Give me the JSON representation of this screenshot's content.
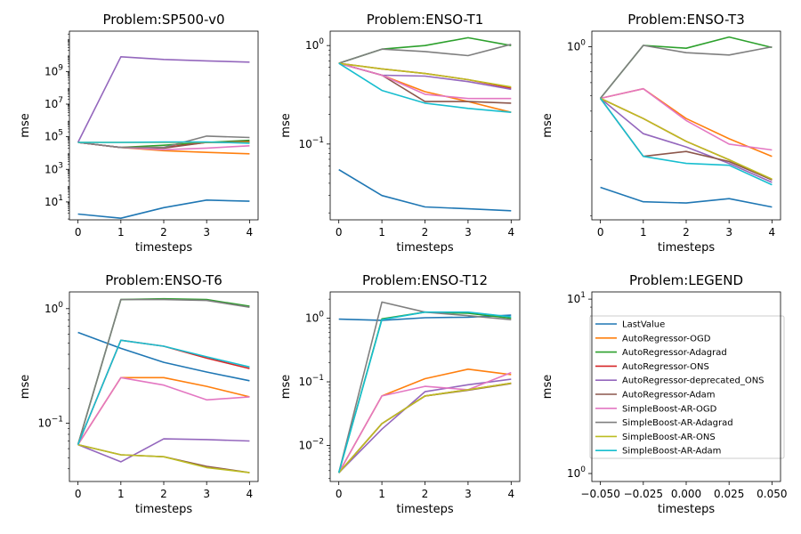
{
  "chart_data": [
    {
      "type": "line",
      "title": "Problem:SP500-v0",
      "xlabel": "timesteps",
      "ylabel": "mse",
      "yscale": "log",
      "ylim": [
        0.8,
        300000000000
      ],
      "yticks": [
        {
          "v": 10,
          "b": "10",
          "e": "1"
        },
        {
          "v": 1000,
          "b": "10",
          "e": "3"
        },
        {
          "v": 100000,
          "b": "10",
          "e": "5"
        },
        {
          "v": 10000000,
          "b": "10",
          "e": "7"
        },
        {
          "v": 1000000000,
          "b": "10",
          "e": "9"
        }
      ],
      "xlim": [
        -0.2,
        4.2
      ],
      "xticks": [
        "0",
        "1",
        "2",
        "3",
        "4"
      ],
      "x": [
        0,
        1,
        2,
        3,
        4
      ],
      "series": [
        {
          "name": "LastValue",
          "color": "#1f77b4",
          "values": [
            1.8,
            1.0,
            4.5,
            13,
            11
          ]
        },
        {
          "name": "AutoRegressor-OGD",
          "color": "#ff7f0e",
          "values": [
            45000,
            22000,
            14000,
            11000,
            9000
          ]
        },
        {
          "name": "AutoRegressor-Adagrad",
          "color": "#2ca02c",
          "values": [
            45000,
            22000,
            30000,
            45000,
            60000
          ]
        },
        {
          "name": "AutoRegressor-ONS",
          "color": "#d62728",
          "values": [
            45000,
            22000,
            22000,
            45000,
            50000
          ]
        },
        {
          "name": "AutoRegressor-deprecated_ONS",
          "color": "#9467bd",
          "values": [
            45000,
            8000000000,
            5500000000,
            4500000000,
            3800000000
          ]
        },
        {
          "name": "AutoRegressor-Adam",
          "color": "#8c564b",
          "values": [
            45000,
            22000,
            20000,
            45000,
            45000
          ]
        },
        {
          "name": "SimpleBoost-AR-OGD",
          "color": "#e377c2",
          "values": [
            45000,
            22000,
            16000,
            20000,
            28000
          ]
        },
        {
          "name": "SimpleBoost-AR-Adagrad",
          "color": "#7f7f7f",
          "values": [
            45000,
            22000,
            22000,
            110000,
            90000
          ]
        },
        {
          "name": "SimpleBoost-AR-ONS",
          "color": "#bcbd22",
          "values": [
            45000,
            45000,
            45000,
            45000,
            45000
          ]
        },
        {
          "name": "SimpleBoost-AR-Adam",
          "color": "#17becf",
          "values": [
            45000,
            45000,
            47000,
            48000,
            40000
          ]
        }
      ]
    },
    {
      "type": "line",
      "title": "Problem:ENSO-T1",
      "xlabel": "timesteps",
      "ylabel": "mse",
      "yscale": "log",
      "ylim": [
        0.017,
        1.4
      ],
      "yticks": [
        {
          "v": 0.1,
          "b": "10",
          "e": "−1"
        },
        {
          "v": 1,
          "b": "10",
          "e": "0"
        }
      ],
      "xlim": [
        -0.2,
        4.2
      ],
      "xticks": [
        "0",
        "1",
        "2",
        "3",
        "4"
      ],
      "x": [
        0,
        1,
        2,
        3,
        4
      ],
      "series": [
        {
          "name": "LastValue",
          "color": "#1f77b4",
          "values": [
            0.055,
            0.03,
            0.023,
            0.022,
            0.021
          ]
        },
        {
          "name": "AutoRegressor-OGD",
          "color": "#ff7f0e",
          "values": [
            0.66,
            0.5,
            0.34,
            0.27,
            0.21
          ]
        },
        {
          "name": "AutoRegressor-Adagrad",
          "color": "#2ca02c",
          "values": [
            0.66,
            0.92,
            1.0,
            1.2,
            1.0
          ]
        },
        {
          "name": "AutoRegressor-ONS",
          "color": "#d62728",
          "values": [
            0.66,
            0.58,
            0.52,
            0.45,
            0.37
          ]
        },
        {
          "name": "AutoRegressor-deprecated_ONS",
          "color": "#9467bd",
          "values": [
            0.66,
            0.5,
            0.49,
            0.43,
            0.36
          ]
        },
        {
          "name": "AutoRegressor-Adam",
          "color": "#8c564b",
          "values": [
            0.66,
            0.5,
            0.27,
            0.27,
            0.26
          ]
        },
        {
          "name": "SimpleBoost-AR-OGD",
          "color": "#e377c2",
          "values": [
            0.66,
            0.5,
            0.32,
            0.29,
            0.29
          ]
        },
        {
          "name": "SimpleBoost-AR-Adagrad",
          "color": "#7f7f7f",
          "values": [
            0.66,
            0.92,
            0.87,
            0.79,
            1.03
          ]
        },
        {
          "name": "SimpleBoost-AR-ONS",
          "color": "#bcbd22",
          "values": [
            0.66,
            0.58,
            0.52,
            0.45,
            0.38
          ]
        },
        {
          "name": "SimpleBoost-AR-Adam",
          "color": "#17becf",
          "values": [
            0.66,
            0.35,
            0.26,
            0.23,
            0.21
          ]
        }
      ]
    },
    {
      "type": "line",
      "title": "Problem:ENSO-T3",
      "xlabel": "timesteps",
      "ylabel": "mse",
      "yscale": "log",
      "ylim": [
        0.085,
        1.25
      ],
      "yticks": [
        {
          "v": 1,
          "b": "10",
          "e": "0"
        }
      ],
      "xlim": [
        -0.2,
        4.2
      ],
      "xticks": [
        "0",
        "1",
        "2",
        "3",
        "4"
      ],
      "x": [
        0,
        1,
        2,
        3,
        4
      ],
      "series": [
        {
          "name": "LastValue",
          "color": "#1f77b4",
          "values": [
            0.135,
            0.11,
            0.108,
            0.115,
            0.102
          ]
        },
        {
          "name": "AutoRegressor-OGD",
          "color": "#ff7f0e",
          "values": [
            0.48,
            0.55,
            0.36,
            0.27,
            0.21
          ]
        },
        {
          "name": "AutoRegressor-Adagrad",
          "color": "#2ca02c",
          "values": [
            0.48,
            1.02,
            0.98,
            1.15,
            0.99
          ]
        },
        {
          "name": "AutoRegressor-ONS",
          "color": "#d62728",
          "values": [
            0.48,
            0.36,
            0.26,
            0.2,
            0.15
          ]
        },
        {
          "name": "AutoRegressor-deprecated_ONS",
          "color": "#9467bd",
          "values": [
            0.48,
            0.29,
            0.24,
            0.19,
            0.145
          ]
        },
        {
          "name": "AutoRegressor-Adam",
          "color": "#8c564b",
          "values": [
            0.48,
            0.21,
            0.225,
            0.195,
            0.15
          ]
        },
        {
          "name": "SimpleBoost-AR-OGD",
          "color": "#e377c2",
          "values": [
            0.48,
            0.55,
            0.35,
            0.25,
            0.23
          ]
        },
        {
          "name": "SimpleBoost-AR-Adagrad",
          "color": "#7f7f7f",
          "values": [
            0.48,
            1.02,
            0.92,
            0.89,
            1.0
          ]
        },
        {
          "name": "SimpleBoost-AR-ONS",
          "color": "#bcbd22",
          "values": [
            0.48,
            0.36,
            0.26,
            0.2,
            0.152
          ]
        },
        {
          "name": "SimpleBoost-AR-Adam",
          "color": "#17becf",
          "values": [
            0.48,
            0.21,
            0.19,
            0.185,
            0.14
          ]
        }
      ]
    },
    {
      "type": "line",
      "title": "Problem:ENSO-T6",
      "xlabel": "timesteps",
      "ylabel": "mse",
      "yscale": "log",
      "ylim": [
        0.031,
        1.4
      ],
      "yticks": [
        {
          "v": 0.1,
          "b": "10",
          "e": "−1"
        },
        {
          "v": 1,
          "b": "10",
          "e": "0"
        }
      ],
      "xlim": [
        -0.2,
        4.2
      ],
      "xticks": [
        "0",
        "1",
        "2",
        "3",
        "4"
      ],
      "x": [
        0,
        1,
        2,
        3,
        4
      ],
      "series": [
        {
          "name": "LastValue",
          "color": "#1f77b4",
          "values": [
            0.62,
            0.45,
            0.34,
            0.28,
            0.235
          ]
        },
        {
          "name": "AutoRegressor-OGD",
          "color": "#ff7f0e",
          "values": [
            0.065,
            0.25,
            0.25,
            0.21,
            0.17
          ]
        },
        {
          "name": "AutoRegressor-Adagrad",
          "color": "#2ca02c",
          "values": [
            0.065,
            1.2,
            1.22,
            1.2,
            1.05
          ]
        },
        {
          "name": "AutoRegressor-ONS",
          "color": "#d62728",
          "values": [
            0.065,
            0.53,
            0.47,
            0.37,
            0.3
          ]
        },
        {
          "name": "AutoRegressor-deprecated_ONS",
          "color": "#9467bd",
          "values": [
            0.065,
            0.046,
            0.073,
            0.072,
            0.07
          ]
        },
        {
          "name": "AutoRegressor-Adam",
          "color": "#8c564b",
          "values": [
            0.065,
            0.053,
            0.051,
            0.042,
            0.037
          ]
        },
        {
          "name": "SimpleBoost-AR-OGD",
          "color": "#e377c2",
          "values": [
            0.065,
            0.25,
            0.215,
            0.16,
            0.17
          ]
        },
        {
          "name": "SimpleBoost-AR-Adagrad",
          "color": "#7f7f7f",
          "values": [
            0.065,
            1.2,
            1.2,
            1.18,
            1.03
          ]
        },
        {
          "name": "SimpleBoost-AR-ONS",
          "color": "#bcbd22",
          "values": [
            0.065,
            0.053,
            0.051,
            0.041,
            0.037
          ]
        },
        {
          "name": "SimpleBoost-AR-Adam",
          "color": "#17becf",
          "values": [
            0.065,
            0.53,
            0.47,
            0.38,
            0.31
          ]
        }
      ]
    },
    {
      "type": "line",
      "title": "Problem:ENSO-T12",
      "xlabel": "timesteps",
      "ylabel": "mse",
      "yscale": "log",
      "ylim": [
        0.0027,
        2.6
      ],
      "yticks": [
        {
          "v": 0.01,
          "b": "10",
          "e": "−2"
        },
        {
          "v": 0.1,
          "b": "10",
          "e": "−1"
        },
        {
          "v": 1,
          "b": "10",
          "e": "0"
        }
      ],
      "xlim": [
        -0.2,
        4.2
      ],
      "xticks": [
        "0",
        "1",
        "2",
        "3",
        "4"
      ],
      "x": [
        0,
        1,
        2,
        3,
        4
      ],
      "series": [
        {
          "name": "LastValue",
          "color": "#1f77b4",
          "values": [
            0.97,
            0.93,
            1.02,
            1.04,
            1.12
          ]
        },
        {
          "name": "AutoRegressor-OGD",
          "color": "#ff7f0e",
          "values": [
            0.0037,
            0.06,
            0.112,
            0.158,
            0.13
          ]
        },
        {
          "name": "AutoRegressor-Adagrad",
          "color": "#2ca02c",
          "values": [
            0.0037,
            0.98,
            1.25,
            1.2,
            1.0
          ]
        },
        {
          "name": "AutoRegressor-ONS",
          "color": "#d62728",
          "values": [
            0.0037,
            0.022,
            0.06,
            0.075,
            0.095
          ]
        },
        {
          "name": "AutoRegressor-deprecated_ONS",
          "color": "#9467bd",
          "values": [
            0.0037,
            0.018,
            0.07,
            0.09,
            0.11
          ]
        },
        {
          "name": "AutoRegressor-Adam",
          "color": "#8c564b",
          "values": [
            0.0037,
            0.022,
            0.06,
            0.074,
            0.094
          ]
        },
        {
          "name": "SimpleBoost-AR-OGD",
          "color": "#e377c2",
          "values": [
            0.0037,
            0.06,
            0.085,
            0.075,
            0.14
          ]
        },
        {
          "name": "SimpleBoost-AR-Adagrad",
          "color": "#7f7f7f",
          "values": [
            0.0037,
            1.8,
            1.25,
            1.1,
            0.95
          ]
        },
        {
          "name": "SimpleBoost-AR-ONS",
          "color": "#bcbd22",
          "values": [
            0.0037,
            0.022,
            0.06,
            0.075,
            0.095
          ]
        },
        {
          "name": "SimpleBoost-AR-Adam",
          "color": "#17becf",
          "values": [
            0.0037,
            0.95,
            1.25,
            1.25,
            1.05
          ]
        }
      ]
    },
    {
      "type": "legend",
      "title": "Problem:LEGEND",
      "xlabel": "timesteps",
      "ylabel": "mse",
      "yscale": "log",
      "ylim": [
        0.9,
        11
      ],
      "yticks": [
        {
          "v": 1,
          "b": "10",
          "e": "0"
        },
        {
          "v": 10,
          "b": "10",
          "e": "1"
        }
      ],
      "xlim": [
        -0.055,
        0.055
      ],
      "xticks": [
        "−0.050",
        "−0.025",
        "0.000",
        "0.025",
        "0.050"
      ],
      "legend_entries": [
        {
          "name": "LastValue",
          "color": "#1f77b4"
        },
        {
          "name": "AutoRegressor-OGD",
          "color": "#ff7f0e"
        },
        {
          "name": "AutoRegressor-Adagrad",
          "color": "#2ca02c"
        },
        {
          "name": "AutoRegressor-ONS",
          "color": "#d62728"
        },
        {
          "name": "AutoRegressor-deprecated_ONS",
          "color": "#9467bd"
        },
        {
          "name": "AutoRegressor-Adam",
          "color": "#8c564b"
        },
        {
          "name": "SimpleBoost-AR-OGD",
          "color": "#e377c2"
        },
        {
          "name": "SimpleBoost-AR-Adagrad",
          "color": "#7f7f7f"
        },
        {
          "name": "SimpleBoost-AR-ONS",
          "color": "#bcbd22"
        },
        {
          "name": "SimpleBoost-AR-Adam",
          "color": "#17becf"
        }
      ]
    }
  ]
}
